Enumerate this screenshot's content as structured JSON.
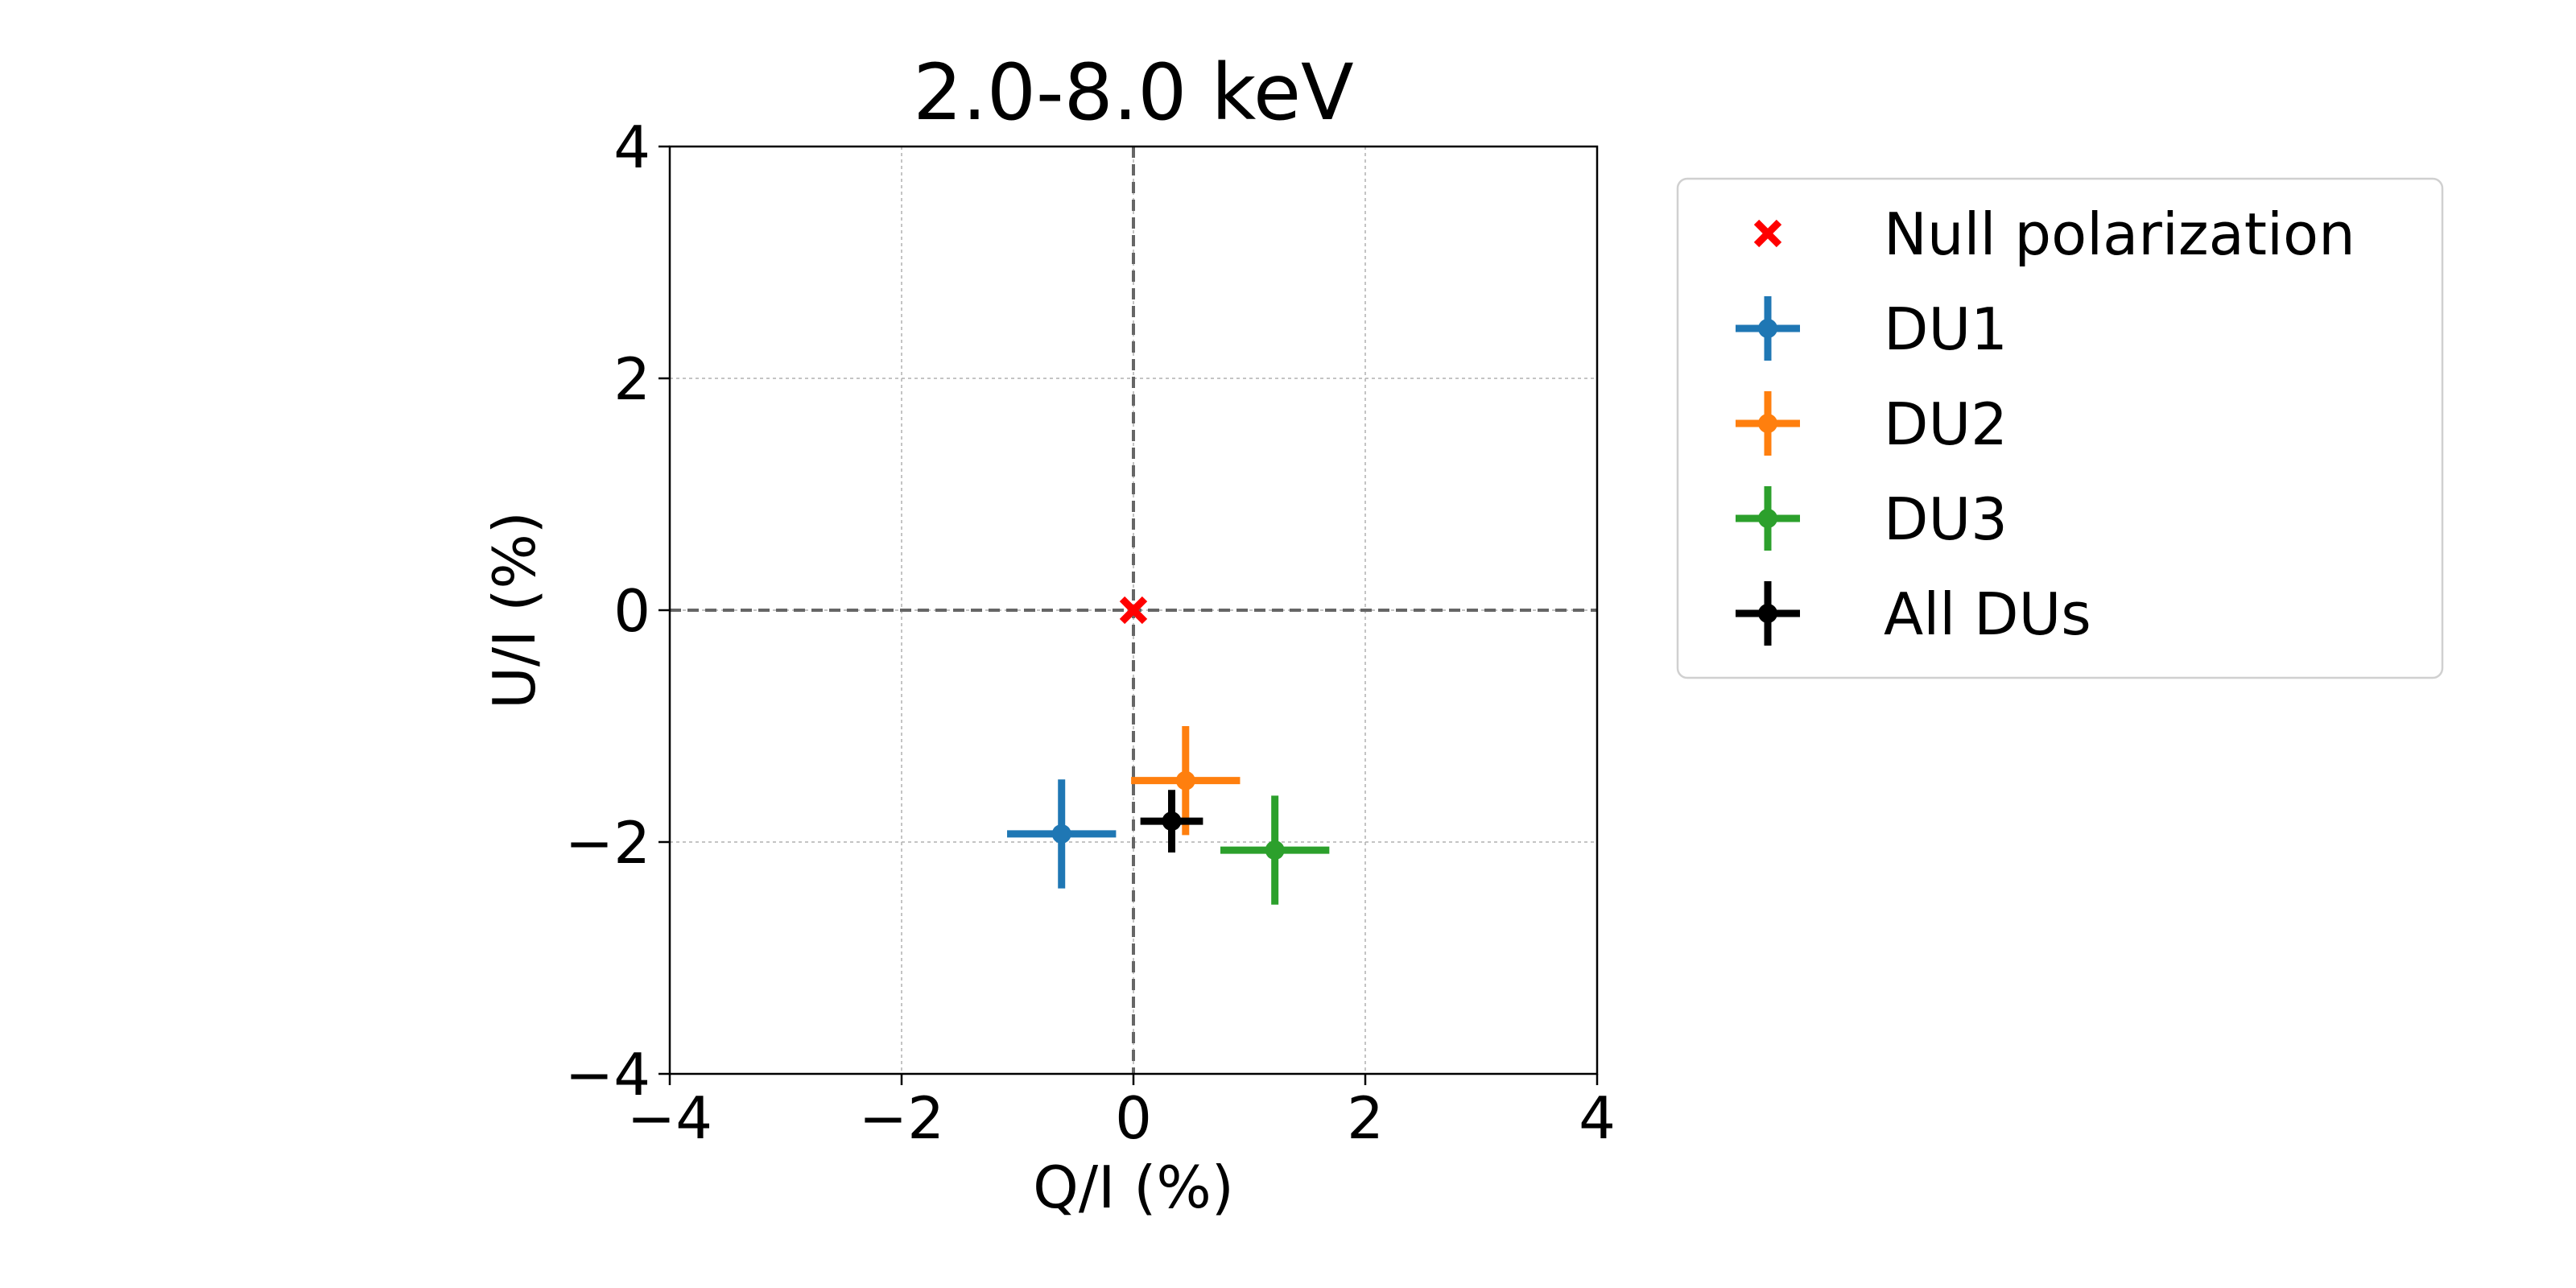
{
  "chart_data": {
    "type": "scatter",
    "title": "2.0-8.0 keV",
    "xlabel": "Q/I (%)",
    "ylabel": "U/I (%)",
    "xlim": [
      -4,
      4
    ],
    "ylim": [
      -4,
      4
    ],
    "xticks": [
      -4,
      -2,
      0,
      2,
      4
    ],
    "yticks": [
      -4,
      -2,
      0,
      2,
      4
    ],
    "xtick_labels": [
      "−4",
      "−2",
      "0",
      "2",
      "4"
    ],
    "ytick_labels": [
      "−4",
      "−2",
      "0",
      "2",
      "4"
    ],
    "grid": true,
    "reference_lines": {
      "x": 0,
      "y": 0,
      "style": "dashed"
    },
    "legend_position": "outside-right-top",
    "series": [
      {
        "name": "Null polarization",
        "marker": "x-filled",
        "color": "#ff0000",
        "points": [
          {
            "x": 0.0,
            "y": 0.0
          }
        ]
      },
      {
        "name": "DU1",
        "marker": "errorbar",
        "color": "#1f77b4",
        "points": [
          {
            "x": -0.62,
            "y": -1.93,
            "xerr": 0.47,
            "yerr": 0.47
          }
        ]
      },
      {
        "name": "DU2",
        "marker": "errorbar",
        "color": "#ff7f0e",
        "points": [
          {
            "x": 0.45,
            "y": -1.47,
            "xerr": 0.47,
            "yerr": 0.47
          }
        ]
      },
      {
        "name": "DU3",
        "marker": "errorbar",
        "color": "#2ca02c",
        "points": [
          {
            "x": 1.22,
            "y": -2.07,
            "xerr": 0.47,
            "yerr": 0.47
          }
        ]
      },
      {
        "name": "All DUs",
        "marker": "errorbar",
        "color": "#000000",
        "points": [
          {
            "x": 0.33,
            "y": -1.82,
            "xerr": 0.27,
            "yerr": 0.27
          }
        ]
      }
    ]
  }
}
